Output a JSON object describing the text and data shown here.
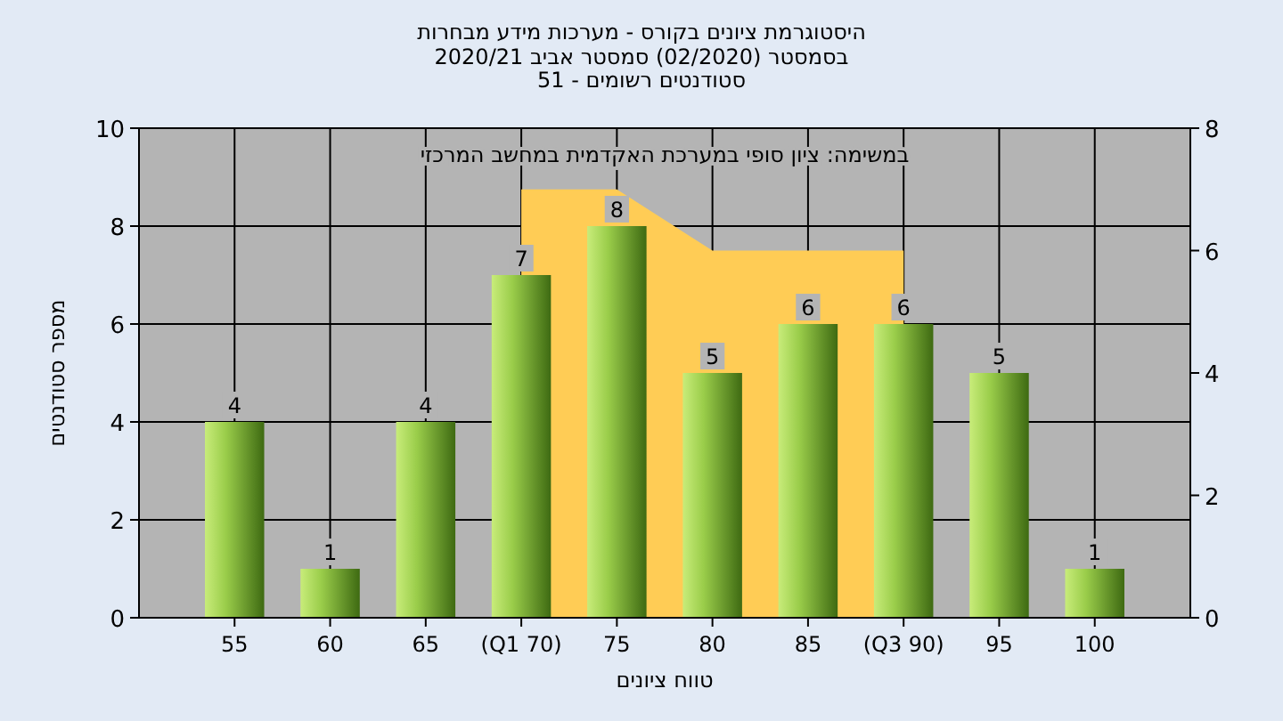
{
  "chart_data": {
    "type": "bar",
    "title": "היסטוגרמת ציונים בקורס - מערכות מידע מבחרות",
    "subtitle": [
      "בסמסטר  (02/2020)  סמסטר אביב 2020/21",
      "סטודנטים רשומים - 51"
    ],
    "xlabel": "טווח ציונים",
    "ylabel": "מספר סטודנטים",
    "annotations": [
      "במשימה: ציון סופי במערכת האקדמית במחשב המרכזי"
    ],
    "categories": [
      "55",
      "60",
      "65",
      "(Q1 70)",
      "75",
      "80",
      "85",
      "(Q3 90)",
      "95",
      "100"
    ],
    "series": [
      {
        "type": "area",
        "axis": "y2",
        "color": "#ffcc55",
        "values": [
          null,
          null,
          null,
          7,
          7,
          6,
          6,
          6,
          null,
          null
        ]
      },
      {
        "color": "#9acd4a",
        "values": [
          4,
          1,
          4,
          7,
          8,
          5,
          6,
          6,
          5,
          1
        ],
        "value_labels": [
          "4",
          "1",
          "4",
          "7",
          "8",
          "5",
          "6",
          "6",
          "5",
          "1"
        ]
      }
    ],
    "grid": true,
    "ylim": [
      0,
      10
    ],
    "yticks": [
      0,
      2,
      4,
      6,
      8,
      10
    ],
    "y2lim": [
      0,
      8
    ],
    "y2ticks": [
      0,
      2,
      4,
      6,
      8
    ]
  }
}
